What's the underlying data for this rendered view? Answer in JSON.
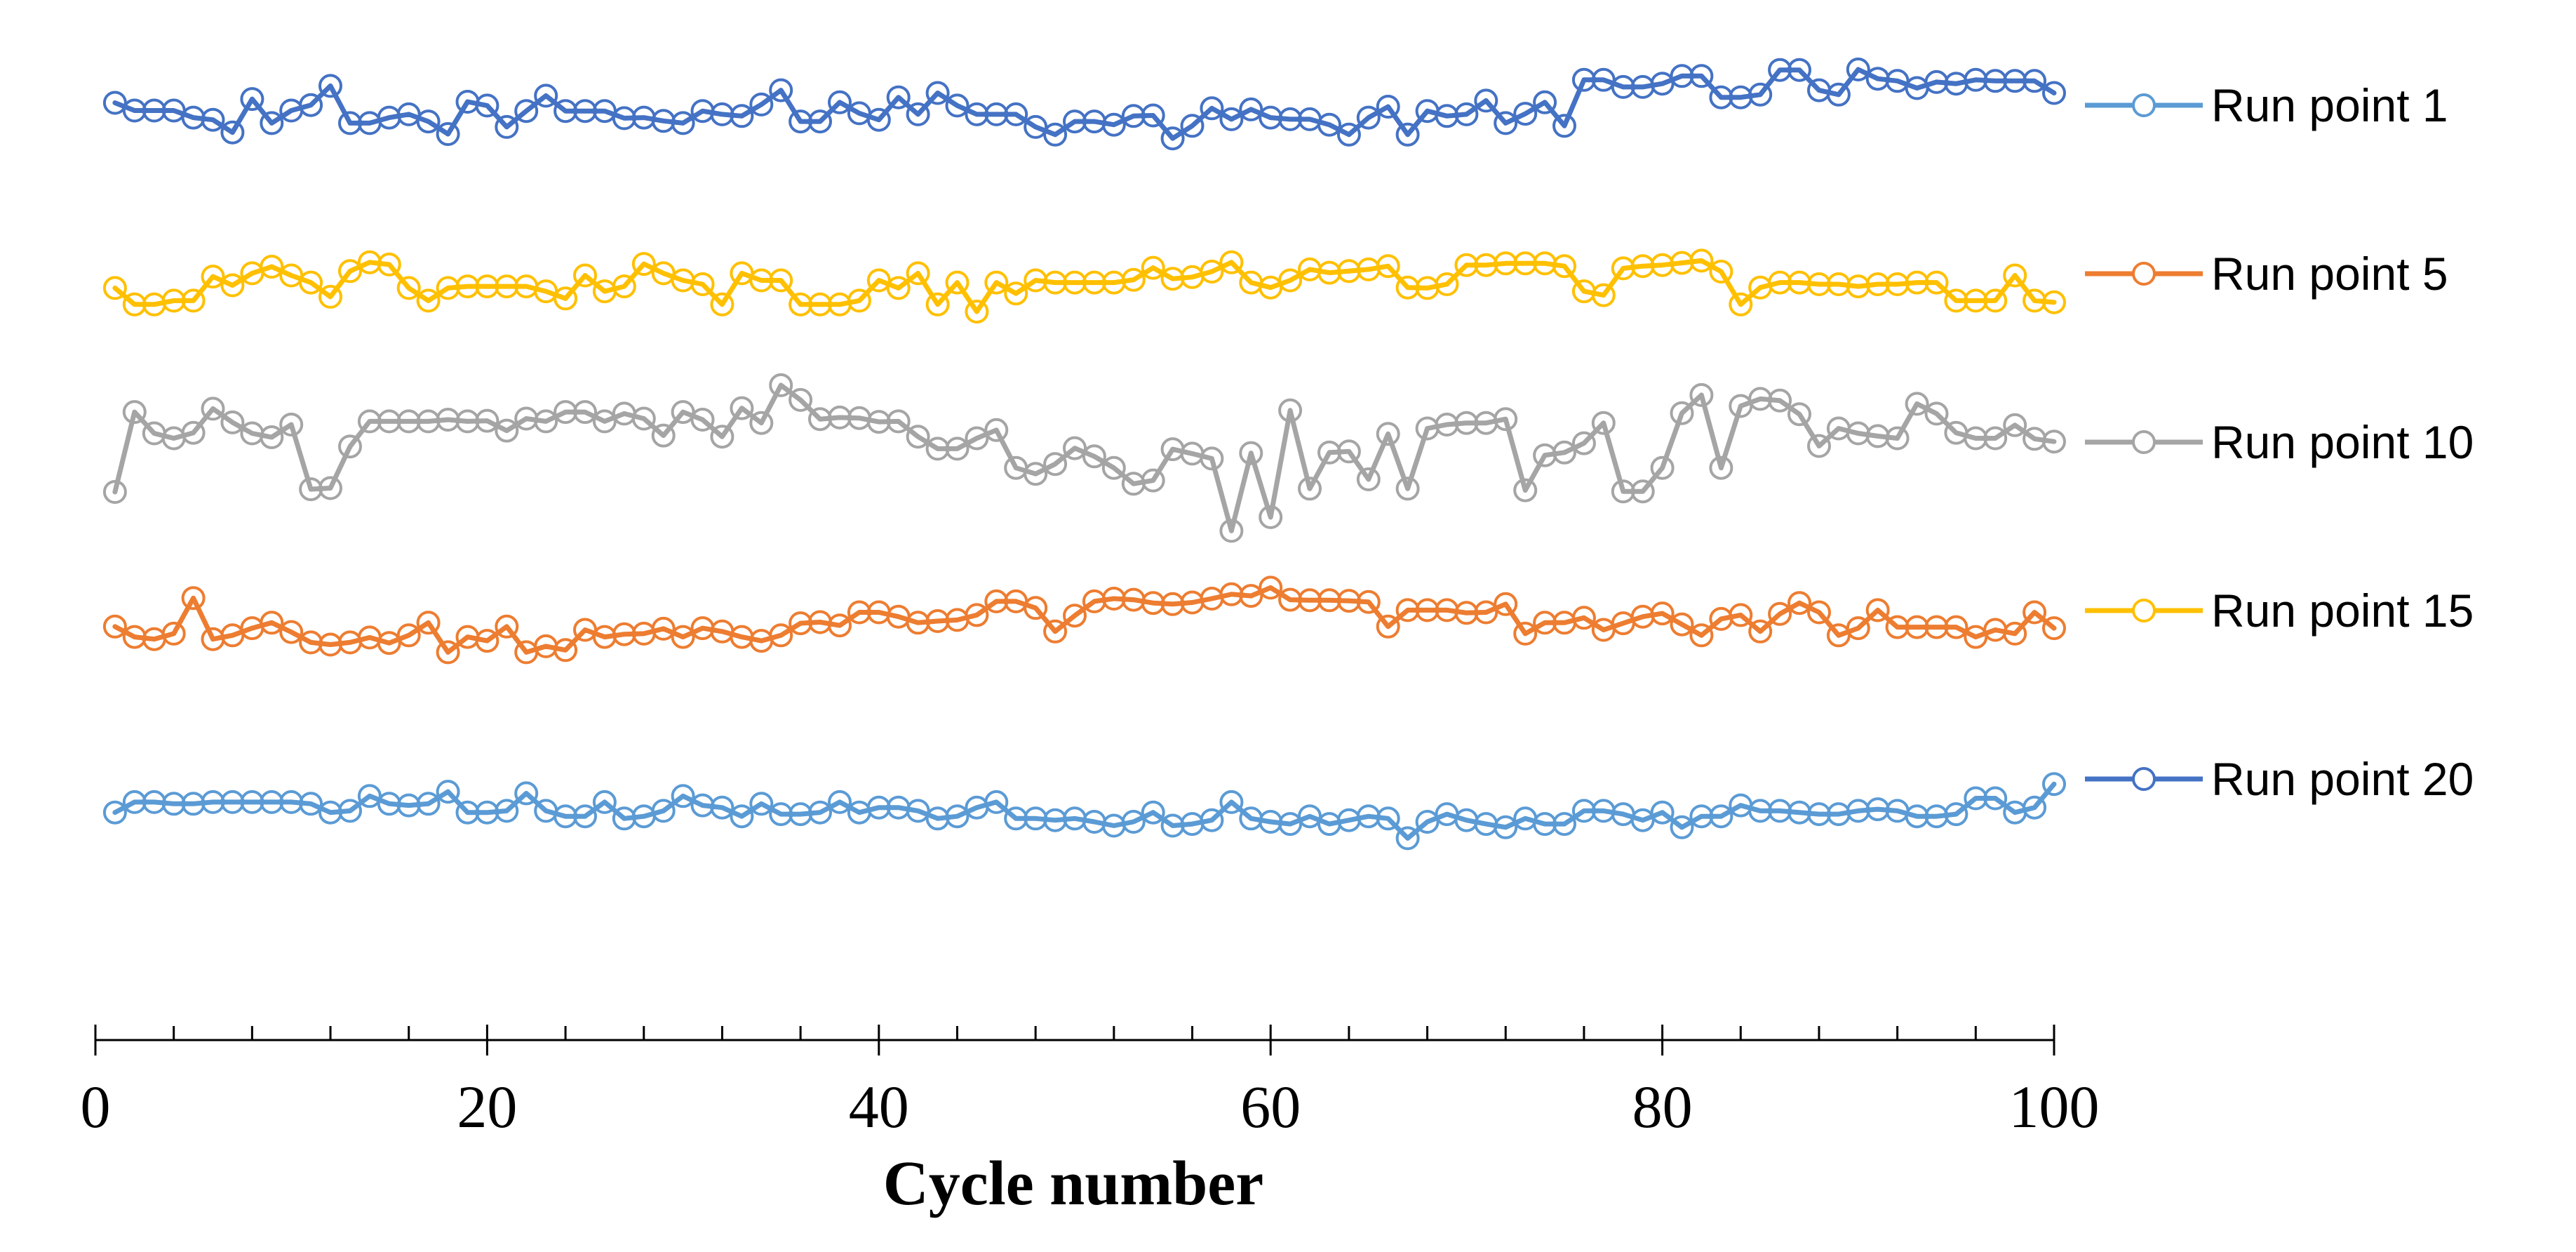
{
  "chart_data": {
    "type": "line",
    "title": "",
    "xlabel": "Cycle number",
    "ylabel": "",
    "xlim": [
      0,
      100
    ],
    "x_ticks": [
      0,
      20,
      40,
      60,
      80,
      100
    ],
    "x_tick_labels": [
      "0",
      "20",
      "40",
      "60",
      "80",
      "100"
    ],
    "minor_tick_step": 4,
    "y_axis_visible": false,
    "grid": false,
    "legend_position": "right",
    "marker": "open-circle",
    "x": [
      1,
      2,
      3,
      4,
      5,
      6,
      7,
      8,
      9,
      10,
      11,
      12,
      13,
      14,
      15,
      16,
      17,
      18,
      19,
      20,
      21,
      22,
      23,
      24,
      25,
      26,
      27,
      28,
      29,
      30,
      31,
      32,
      33,
      34,
      35,
      36,
      37,
      38,
      39,
      40,
      41,
      42,
      43,
      44,
      45,
      46,
      47,
      48,
      49,
      50,
      51,
      52,
      53,
      54,
      55,
      56,
      57,
      58,
      59,
      60,
      61,
      62,
      63,
      64,
      65,
      66,
      67,
      68,
      69,
      70,
      71,
      72,
      73,
      74,
      75,
      76,
      77,
      78,
      79,
      80,
      81,
      82,
      83,
      84,
      85,
      86,
      87,
      88,
      89,
      90,
      91,
      92,
      93,
      94,
      95,
      96,
      97,
      98,
      99,
      100
    ],
    "series": [
      {
        "name": "Run point 1",
        "color": "#5B9BD5",
        "values": [
          4.67,
          4.86,
          4.86,
          4.83,
          4.83,
          4.86,
          4.86,
          4.86,
          4.86,
          4.86,
          4.83,
          4.67,
          4.7,
          4.97,
          4.83,
          4.8,
          4.83,
          5.05,
          4.67,
          4.67,
          4.7,
          5.02,
          4.7,
          4.6,
          4.6,
          4.86,
          4.56,
          4.6,
          4.7,
          4.97,
          4.8,
          4.76,
          4.6,
          4.83,
          4.64,
          4.64,
          4.67,
          4.86,
          4.67,
          4.76,
          4.76,
          4.7,
          4.56,
          4.6,
          4.76,
          4.86,
          4.56,
          4.56,
          4.53,
          4.56,
          4.5,
          4.43,
          4.5,
          4.67,
          4.43,
          4.46,
          4.53,
          4.86,
          4.56,
          4.5,
          4.46,
          4.6,
          4.46,
          4.53,
          4.6,
          4.56,
          4.2,
          4.5,
          4.64,
          4.53,
          4.46,
          4.4,
          4.56,
          4.46,
          4.46,
          4.7,
          4.7,
          4.64,
          4.53,
          4.67,
          4.4,
          4.6,
          4.6,
          4.8,
          4.7,
          4.7,
          4.67,
          4.64,
          4.64,
          4.7,
          4.73,
          4.7,
          4.6,
          4.6,
          4.64,
          4.93,
          4.93,
          4.67,
          4.76,
          5.19
        ]
      },
      {
        "name": "Run point 5",
        "color": "#ED7D31",
        "values": [
          4.99,
          4.8,
          4.76,
          4.86,
          5.51,
          4.76,
          4.83,
          4.96,
          5.06,
          4.89,
          4.7,
          4.66,
          4.7,
          4.79,
          4.69,
          4.83,
          5.06,
          4.52,
          4.8,
          4.73,
          4.99,
          4.52,
          4.63,
          4.56,
          4.93,
          4.8,
          4.85,
          4.86,
          4.95,
          4.8,
          4.96,
          4.9,
          4.8,
          4.73,
          4.83,
          5.05,
          5.07,
          5.01,
          5.25,
          5.25,
          5.17,
          5.06,
          5.09,
          5.11,
          5.2,
          5.45,
          5.45,
          5.33,
          4.9,
          5.19,
          5.45,
          5.5,
          5.48,
          5.42,
          5.4,
          5.43,
          5.5,
          5.58,
          5.55,
          5.7,
          5.48,
          5.47,
          5.47,
          5.46,
          5.44,
          4.99,
          5.29,
          5.29,
          5.29,
          5.24,
          5.25,
          5.4,
          4.86,
          5.06,
          5.06,
          5.15,
          4.93,
          5.05,
          5.17,
          5.23,
          5.03,
          4.83,
          5.13,
          5.2,
          4.9,
          5.22,
          5.42,
          5.25,
          4.83,
          4.96,
          5.29,
          4.98,
          4.98,
          4.98,
          4.98,
          4.8,
          4.93,
          4.86,
          5.25,
          4.96
        ]
      },
      {
        "name": "Run point 10",
        "color": "#A5A5A5",
        "values": [
          4.09,
          5.55,
          5.16,
          5.07,
          5.17,
          5.61,
          5.36,
          5.16,
          5.09,
          5.32,
          4.14,
          4.16,
          4.92,
          5.38,
          5.38,
          5.38,
          5.38,
          5.41,
          5.38,
          5.39,
          5.21,
          5.43,
          5.38,
          5.55,
          5.55,
          5.38,
          5.52,
          5.43,
          5.12,
          5.55,
          5.41,
          5.1,
          5.62,
          5.35,
          6.04,
          5.77,
          5.42,
          5.45,
          5.44,
          5.37,
          5.38,
          5.1,
          4.88,
          4.88,
          5.07,
          5.22,
          4.53,
          4.42,
          4.6,
          4.89,
          4.74,
          4.53,
          4.24,
          4.3,
          4.87,
          4.79,
          4.7,
          3.38,
          4.8,
          3.63,
          5.58,
          4.15,
          4.81,
          4.83,
          4.32,
          5.15,
          4.15,
          5.25,
          5.32,
          5.35,
          5.35,
          5.42,
          4.12,
          4.76,
          4.81,
          4.98,
          5.35,
          4.1,
          4.1,
          4.53,
          5.53,
          5.86,
          4.53,
          5.66,
          5.79,
          5.76,
          5.51,
          4.93,
          5.25,
          5.16,
          5.11,
          5.07,
          5.7,
          5.52,
          5.17,
          5.07,
          5.07,
          5.31,
          5.06,
          5.01
        ]
      },
      {
        "name": "Run point 15",
        "color": "#FFC000",
        "values": [
          5.02,
          4.72,
          4.72,
          4.79,
          4.79,
          5.23,
          5.07,
          5.29,
          5.41,
          5.25,
          5.12,
          4.86,
          5.33,
          5.49,
          5.45,
          5.02,
          4.79,
          5.02,
          5.05,
          5.05,
          5.05,
          5.05,
          4.96,
          4.83,
          5.25,
          4.96,
          5.05,
          5.46,
          5.29,
          5.16,
          5.09,
          4.72,
          5.29,
          5.16,
          5.16,
          4.72,
          4.72,
          4.72,
          4.79,
          5.16,
          5.02,
          5.29,
          4.72,
          5.12,
          4.59,
          5.12,
          4.92,
          5.16,
          5.12,
          5.12,
          5.12,
          5.12,
          5.17,
          5.39,
          5.19,
          5.22,
          5.32,
          5.49,
          5.12,
          5.03,
          5.16,
          5.36,
          5.3,
          5.33,
          5.36,
          5.42,
          5.03,
          5.02,
          5.09,
          5.44,
          5.44,
          5.47,
          5.47,
          5.47,
          5.42,
          4.96,
          4.89,
          5.38,
          5.42,
          5.44,
          5.48,
          5.52,
          5.32,
          4.72,
          5.03,
          5.12,
          5.12,
          5.09,
          5.09,
          5.05,
          5.09,
          5.09,
          5.12,
          5.12,
          4.79,
          4.79,
          4.79,
          5.25,
          4.79,
          4.76
        ]
      },
      {
        "name": "Run point 20",
        "color": "#4472C4",
        "values": [
          5.07,
          4.93,
          4.93,
          4.93,
          4.8,
          4.76,
          4.53,
          5.14,
          4.7,
          4.93,
          5.03,
          5.38,
          4.7,
          4.7,
          4.8,
          4.86,
          4.73,
          4.5,
          5.09,
          5.02,
          4.63,
          4.92,
          5.2,
          4.92,
          4.92,
          4.92,
          4.79,
          4.8,
          4.74,
          4.7,
          4.92,
          4.86,
          4.83,
          5.04,
          5.3,
          4.73,
          4.73,
          5.08,
          4.88,
          4.76,
          5.17,
          4.86,
          5.25,
          5.02,
          4.86,
          4.86,
          4.86,
          4.63,
          4.49,
          4.73,
          4.73,
          4.67,
          4.83,
          4.84,
          4.42,
          4.65,
          4.97,
          4.77,
          4.95,
          4.8,
          4.77,
          4.77,
          4.67,
          4.49,
          4.8,
          5.0,
          4.49,
          4.92,
          4.83,
          4.86,
          5.11,
          4.7,
          4.87,
          5.08,
          4.65,
          5.49,
          5.49,
          5.36,
          5.36,
          5.42,
          5.56,
          5.56,
          5.17,
          5.17,
          5.22,
          5.67,
          5.67,
          5.3,
          5.22,
          5.68,
          5.51,
          5.47,
          5.34,
          5.45,
          5.42,
          5.49,
          5.47,
          5.47,
          5.47,
          5.25
        ]
      }
    ],
    "legend_order": [
      "Run point 1",
      "Run point 5",
      "Run point 10",
      "Run point 15",
      "Run point 20"
    ]
  }
}
